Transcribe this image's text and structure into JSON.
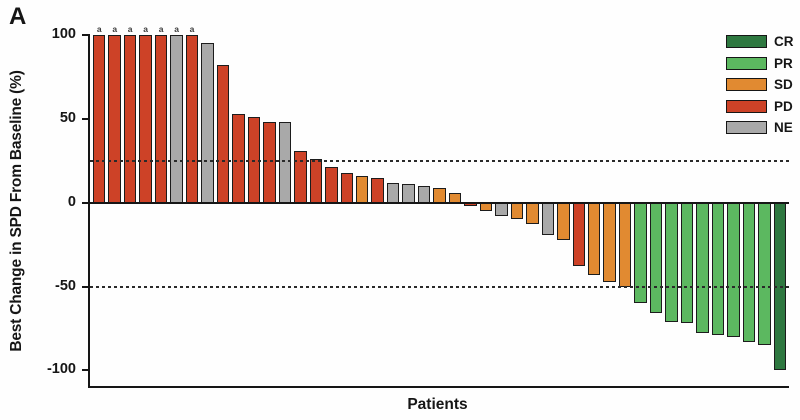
{
  "panel_label": "A",
  "chart_data": {
    "type": "bar",
    "subtype": "waterfall",
    "title": "",
    "xlabel": "Patients",
    "ylabel": "Best Change in SPD From Baseline (%)",
    "ylim": [
      -109,
      105
    ],
    "yticks": [
      100,
      50,
      0,
      -50,
      -100
    ],
    "grid": false,
    "reference_lines": [
      25,
      -50
    ],
    "annotation_symbol": "a",
    "legend": {
      "position": "top-right",
      "entries": [
        {
          "label": "CR",
          "color": "#2E7840"
        },
        {
          "label": "PR",
          "color": "#5CB860"
        },
        {
          "label": "SD",
          "color": "#E18A31"
        },
        {
          "label": "PD",
          "color": "#CD4227"
        },
        {
          "label": "NE",
          "color": "#A9A9A9"
        }
      ]
    },
    "bars": [
      {
        "value": 100,
        "response": "PD",
        "annotation": "a"
      },
      {
        "value": 100,
        "response": "PD",
        "annotation": "a"
      },
      {
        "value": 100,
        "response": "PD",
        "annotation": "a"
      },
      {
        "value": 100,
        "response": "PD",
        "annotation": "a"
      },
      {
        "value": 100,
        "response": "PD",
        "annotation": "a"
      },
      {
        "value": 100,
        "response": "NE",
        "annotation": "a"
      },
      {
        "value": 100,
        "response": "PD",
        "annotation": "a"
      },
      {
        "value": 95,
        "response": "NE"
      },
      {
        "value": 82,
        "response": "PD"
      },
      {
        "value": 53,
        "response": "PD"
      },
      {
        "value": 51,
        "response": "PD"
      },
      {
        "value": 48,
        "response": "PD"
      },
      {
        "value": 48,
        "response": "NE"
      },
      {
        "value": 31,
        "response": "PD"
      },
      {
        "value": 26,
        "response": "PD"
      },
      {
        "value": 21,
        "response": "PD"
      },
      {
        "value": 18,
        "response": "PD"
      },
      {
        "value": 16,
        "response": "SD"
      },
      {
        "value": 15,
        "response": "PD"
      },
      {
        "value": 12,
        "response": "NE"
      },
      {
        "value": 11,
        "response": "NE"
      },
      {
        "value": 10,
        "response": "NE"
      },
      {
        "value": 9,
        "response": "SD"
      },
      {
        "value": 6,
        "response": "SD"
      },
      {
        "value": -2,
        "response": "PD"
      },
      {
        "value": -5,
        "response": "SD"
      },
      {
        "value": -8,
        "response": "NE"
      },
      {
        "value": -10,
        "response": "SD"
      },
      {
        "value": -13,
        "response": "SD"
      },
      {
        "value": -19,
        "response": "NE"
      },
      {
        "value": -22,
        "response": "SD"
      },
      {
        "value": -38,
        "response": "PD"
      },
      {
        "value": -43,
        "response": "SD"
      },
      {
        "value": -47,
        "response": "SD"
      },
      {
        "value": -50,
        "response": "SD"
      },
      {
        "value": -60,
        "response": "PR"
      },
      {
        "value": -66,
        "response": "PR"
      },
      {
        "value": -71,
        "response": "PR"
      },
      {
        "value": -72,
        "response": "PR"
      },
      {
        "value": -78,
        "response": "PR"
      },
      {
        "value": -79,
        "response": "PR"
      },
      {
        "value": -80,
        "response": "PR"
      },
      {
        "value": -83,
        "response": "PR"
      },
      {
        "value": -85,
        "response": "PR"
      },
      {
        "value": -100,
        "response": "CR"
      }
    ]
  }
}
